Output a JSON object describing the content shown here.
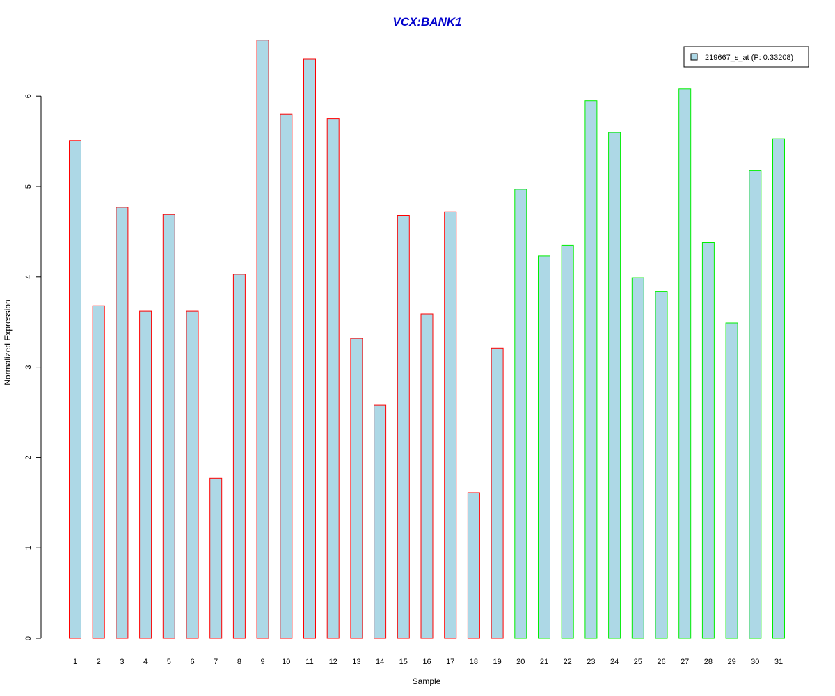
{
  "chart_data": {
    "type": "bar",
    "title": "VCX:BANK1",
    "xlabel": "Sample",
    "ylabel": "Normalized Expression",
    "categories": [
      "1",
      "2",
      "3",
      "4",
      "5",
      "6",
      "7",
      "8",
      "9",
      "10",
      "11",
      "12",
      "13",
      "14",
      "15",
      "16",
      "17",
      "18",
      "19",
      "20",
      "21",
      "22",
      "23",
      "24",
      "25",
      "26",
      "27",
      "28",
      "29",
      "30",
      "31"
    ],
    "series": [
      {
        "name": "219667_s_at (P: 0.33208)",
        "values": [
          5.51,
          3.68,
          4.77,
          3.62,
          4.69,
          3.62,
          1.77,
          4.03,
          6.62,
          5.8,
          6.41,
          5.75,
          3.32,
          2.58,
          4.68,
          3.59,
          4.72,
          1.61,
          3.21,
          4.97,
          4.23,
          4.35,
          5.95,
          5.6,
          3.99,
          3.84,
          6.08,
          4.38,
          3.49,
          5.18,
          5.53
        ]
      }
    ],
    "group_of_bar": [
      "a",
      "a",
      "a",
      "a",
      "a",
      "a",
      "a",
      "a",
      "a",
      "a",
      "a",
      "a",
      "a",
      "a",
      "a",
      "a",
      "a",
      "a",
      "a",
      "b",
      "b",
      "b",
      "b",
      "b",
      "b",
      "b",
      "b",
      "b",
      "b",
      "b",
      "b"
    ],
    "yticks": [
      0,
      1,
      2,
      3,
      4,
      5,
      6
    ],
    "ylim": [
      0,
      6.7
    ],
    "grid": false,
    "legend_position": "top-right",
    "colors": {
      "title": "#0000cc",
      "bar_fill": "#add8e6",
      "group_outline": {
        "a": "#ff0000",
        "b": "#00ee00"
      },
      "axis": "#000000"
    }
  }
}
